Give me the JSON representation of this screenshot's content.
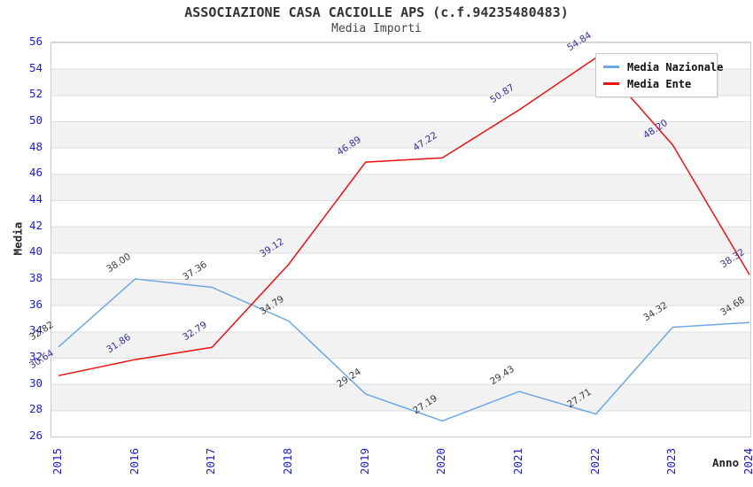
{
  "header": {
    "title": "ASSOCIAZIONE CASA CACIOLLE APS (c.f.94235480483)",
    "subtitle": "Media Importi"
  },
  "chart_data": {
    "type": "line",
    "title": "ASSOCIAZIONE CASA CACIOLLE APS (c.f.94235480483)",
    "subtitle": "Media Importi",
    "xlabel": "Anno",
    "ylabel": "Media",
    "x": [
      2015,
      2016,
      2017,
      2018,
      2019,
      2020,
      2021,
      2022,
      2023,
      2024
    ],
    "series": [
      {
        "name": "Media Nazionale",
        "color": "#6fa8e0",
        "label_color": "#3c3c3c",
        "values": [
          32.82,
          38.0,
          37.36,
          34.79,
          29.24,
          27.19,
          29.43,
          27.71,
          34.32,
          34.68
        ]
      },
      {
        "name": "Media Ente",
        "color": "#ee1111",
        "label_color": "#333399",
        "values": [
          30.64,
          31.86,
          32.79,
          39.12,
          46.89,
          47.22,
          50.87,
          54.84,
          48.2,
          38.32
        ]
      }
    ],
    "ylim": [
      26,
      56
    ],
    "ytick_step": 2,
    "grid": "horizontal-bands",
    "legend_position": "top-right",
    "tick_label_color": "#1c1ccd",
    "band_colors": [
      "#ffffff",
      "#f2f2f2"
    ]
  }
}
